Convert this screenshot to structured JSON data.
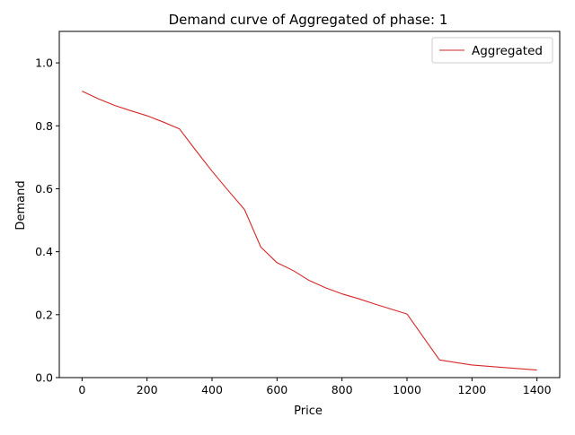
{
  "chart_data": {
    "type": "line",
    "title": "Demand curve of Aggregated of phase: 1",
    "xlabel": "Price",
    "ylabel": "Demand",
    "xlim": [
      -70,
      1470
    ],
    "ylim": [
      0.0,
      1.1
    ],
    "xticks": [
      0,
      200,
      400,
      600,
      800,
      1000,
      1200,
      1400
    ],
    "yticks": [
      0.0,
      0.2,
      0.4,
      0.6,
      0.8,
      1.0
    ],
    "xtick_labels": [
      "0",
      "200",
      "400",
      "600",
      "800",
      "1000",
      "1200",
      "1400"
    ],
    "ytick_labels": [
      "0.0",
      "0.2",
      "0.4",
      "0.6",
      "0.8",
      "1.0"
    ],
    "grid": false,
    "legend_position": "top-right",
    "series": [
      {
        "name": "Aggregated",
        "color": "#d62728",
        "x": [
          0,
          50,
          100,
          150,
          200,
          250,
          300,
          350,
          400,
          450,
          500,
          550,
          600,
          650,
          700,
          750,
          800,
          850,
          900,
          950,
          1000,
          1100,
          1200,
          1300,
          1400
        ],
        "y": [
          0.91,
          0.886,
          0.865,
          0.848,
          0.832,
          0.812,
          0.79,
          0.722,
          0.656,
          0.594,
          0.534,
          0.415,
          0.365,
          0.34,
          0.308,
          0.285,
          0.266,
          0.251,
          0.234,
          0.218,
          0.202,
          0.056,
          0.04,
          0.032,
          0.024
        ]
      }
    ]
  }
}
